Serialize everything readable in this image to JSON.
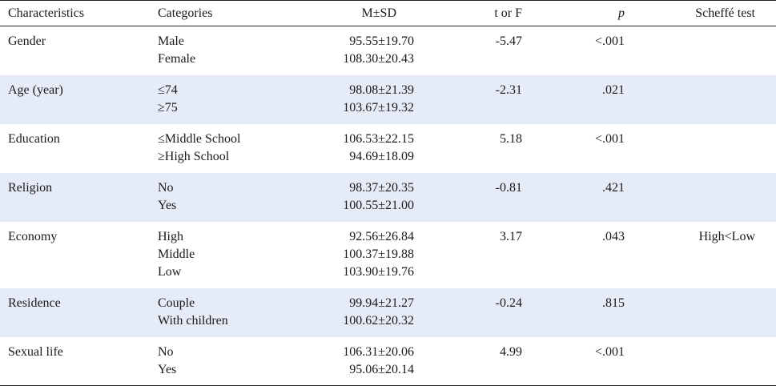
{
  "headers": {
    "characteristics": "Characteristics",
    "categories": "Categories",
    "msd": "M±SD",
    "t_or_f": "t or F",
    "p": "p",
    "scheffe": "Scheffé test"
  },
  "groups": [
    {
      "characteristic": "Gender",
      "categories": [
        "Male",
        "Female"
      ],
      "msd": [
        "95.55±19.70",
        "108.30±20.43"
      ],
      "t_or_f": "-5.47",
      "p": "<.001",
      "scheffe": ""
    },
    {
      "characteristic": "Age (year)",
      "categories": [
        "≤74",
        "≥75"
      ],
      "msd": [
        "98.08±21.39",
        "103.67±19.32"
      ],
      "t_or_f": "-2.31",
      "p": ".021",
      "scheffe": ""
    },
    {
      "characteristic": "Education",
      "categories": [
        "≤Middle School",
        "≥High School"
      ],
      "msd": [
        "106.53±22.15",
        "94.69±18.09"
      ],
      "t_or_f": "5.18",
      "p": "<.001",
      "scheffe": ""
    },
    {
      "characteristic": "Religion",
      "categories": [
        "No",
        "Yes"
      ],
      "msd": [
        "98.37±20.35",
        "100.55±21.00"
      ],
      "t_or_f": "-0.81",
      "p": ".421",
      "scheffe": ""
    },
    {
      "characteristic": "Economy",
      "categories": [
        "High",
        "Middle",
        "Low"
      ],
      "msd": [
        "92.56±26.84",
        "100.37±19.88",
        "103.90±19.76"
      ],
      "t_or_f": "3.17",
      "p": ".043",
      "scheffe": "High<Low"
    },
    {
      "characteristic": "Residence",
      "categories": [
        "Couple",
        "With children"
      ],
      "msd": [
        "99.94±21.27",
        "100.62±20.32"
      ],
      "t_or_f": "-0.24",
      "p": ".815",
      "scheffe": ""
    },
    {
      "characteristic": "Sexual life",
      "categories": [
        "No",
        "Yes"
      ],
      "msd": [
        "106.31±20.06",
        "95.06±20.14"
      ],
      "t_or_f": "4.99",
      "p": "<.001",
      "scheffe": ""
    }
  ]
}
